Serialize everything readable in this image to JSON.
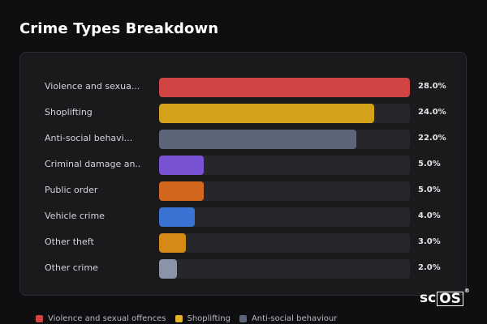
{
  "title": "Crime Types Breakdown",
  "chart_data": {
    "type": "bar",
    "orientation": "horizontal",
    "max": 28.0,
    "categories": [
      "Violence and sexua...",
      "Shoplifting",
      "Anti-social behavi...",
      "Criminal damage an...",
      "Public order",
      "Vehicle crime",
      "Other theft",
      "Other crime"
    ],
    "values": [
      28.0,
      24.0,
      22.0,
      5.0,
      5.0,
      4.0,
      3.0,
      2.0
    ],
    "value_labels": [
      "28.0%",
      "24.0%",
      "22.0%",
      "5.0%",
      "5.0%",
      "4.0%",
      "3.0%",
      "2.0%"
    ],
    "colors": [
      "#d04444",
      "#d4a21a",
      "#5c6678",
      "#7a52d4",
      "#d4671e",
      "#3a73d4",
      "#d48a14",
      "#8a94a6"
    ]
  },
  "legend": [
    {
      "label": "Violence and sexual offences",
      "color": "#d04444"
    },
    {
      "label": "Shoplifting",
      "color": "#e3b428"
    },
    {
      "label": "Anti-social behaviour",
      "color": "#5c6678"
    }
  ],
  "logo": {
    "text_a": "sc",
    "text_b": "OS",
    "reg": "®"
  }
}
